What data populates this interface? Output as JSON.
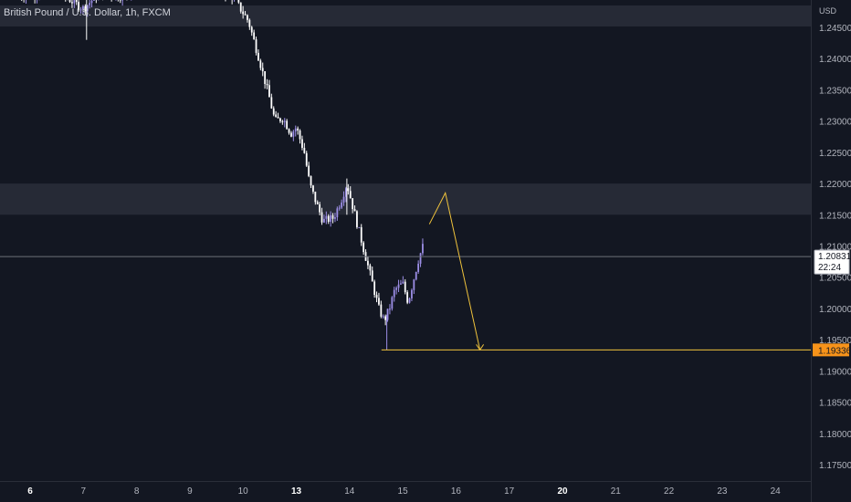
{
  "header": {
    "symbol_title": "British Pound / U.S. Dollar, 1h, FXCM",
    "currency": "USD"
  },
  "price_badge": {
    "price": "1.20831",
    "countdown": "22:24"
  },
  "target_badge": {
    "price": "1.19336"
  },
  "colors": {
    "background": "#131722",
    "zone": "#262a36",
    "candle_up": "#9c8ee6",
    "candle_down": "#ffffff",
    "drawing": "#f0c33c",
    "target_badge_bg": "#f7931a",
    "axis_text": "#b2b5be"
  },
  "chart_data": {
    "type": "candlestick",
    "title": "British Pound / U.S. Dollar, 1h, FXCM",
    "ylabel": "USD",
    "y_ticks": [
      "1.24500",
      "1.24000",
      "1.23500",
      "1.23000",
      "1.22500",
      "1.22000",
      "1.21500",
      "1.21000",
      "1.20500",
      "1.20000",
      "1.19500",
      "1.19000",
      "1.18500",
      "1.18000",
      "1.17500"
    ],
    "x_ticks": [
      {
        "label": "6",
        "bold": true
      },
      {
        "label": "7",
        "bold": false
      },
      {
        "label": "8",
        "bold": false
      },
      {
        "label": "9",
        "bold": false
      },
      {
        "label": "10",
        "bold": false
      },
      {
        "label": "13",
        "bold": true
      },
      {
        "label": "14",
        "bold": false
      },
      {
        "label": "15",
        "bold": false
      },
      {
        "label": "16",
        "bold": false
      },
      {
        "label": "17",
        "bold": false
      },
      {
        "label": "20",
        "bold": true
      },
      {
        "label": "21",
        "bold": false
      },
      {
        "label": "22",
        "bold": false
      },
      {
        "label": "23",
        "bold": false
      },
      {
        "label": "24",
        "bold": false
      }
    ],
    "ylim": [
      1.1715,
      1.2508
    ],
    "zones": [
      {
        "from": 1.245,
        "to": 1.2465
      },
      {
        "from": 1.215,
        "to": 1.22
      }
    ],
    "current_price": 1.20831,
    "target_price": 1.19336,
    "candle_path": [
      {
        "t": -0.2,
        "p": 1.25
      },
      {
        "t": 0.5,
        "p": 1.2508
      },
      {
        "t": 1.0,
        "p": 1.248
      },
      {
        "t": 1.3,
        "p": 1.2505
      },
      {
        "t": 1.7,
        "p": 1.25
      },
      {
        "t": 2.0,
        "p": 1.2508
      },
      {
        "t": 3.5,
        "p": 1.251
      },
      {
        "t": 3.8,
        "p": 1.25
      },
      {
        "t": 4.1,
        "p": 1.246
      },
      {
        "t": 4.3,
        "p": 1.24
      },
      {
        "t": 4.5,
        "p": 1.2335
      },
      {
        "t": 4.6,
        "p": 1.23
      },
      {
        "t": 4.75,
        "p": 1.2305
      },
      {
        "t": 4.9,
        "p": 1.228
      },
      {
        "t": 5.0,
        "p": 1.229
      },
      {
        "t": 5.15,
        "p": 1.225
      },
      {
        "t": 5.25,
        "p": 1.22
      },
      {
        "t": 5.35,
        "p": 1.2175
      },
      {
        "t": 5.5,
        "p": 1.214
      },
      {
        "t": 5.7,
        "p": 1.2145
      },
      {
        "t": 5.85,
        "p": 1.2175
      },
      {
        "t": 5.95,
        "p": 1.22
      },
      {
        "t": 6.1,
        "p": 1.215
      },
      {
        "t": 6.25,
        "p": 1.21
      },
      {
        "t": 6.4,
        "p": 1.205
      },
      {
        "t": 6.55,
        "p": 1.2
      },
      {
        "t": 6.65,
        "p": 1.198
      },
      {
        "t": 6.75,
        "p": 1.2
      },
      {
        "t": 6.85,
        "p": 1.203
      },
      {
        "t": 7.0,
        "p": 1.204
      },
      {
        "t": 7.1,
        "p": 1.201
      },
      {
        "t": 7.2,
        "p": 1.2045
      },
      {
        "t": 7.3,
        "p": 1.208
      },
      {
        "t": 7.4,
        "p": 1.2105
      }
    ],
    "forecast_path": [
      {
        "t": 7.5,
        "p": 1.2135
      },
      {
        "t": 7.8,
        "p": 1.2185
      },
      {
        "t": 8.45,
        "p": 1.19336
      }
    ],
    "target_line": {
      "t_start": 6.6,
      "t_end": 8.5,
      "p": 1.19336
    }
  }
}
